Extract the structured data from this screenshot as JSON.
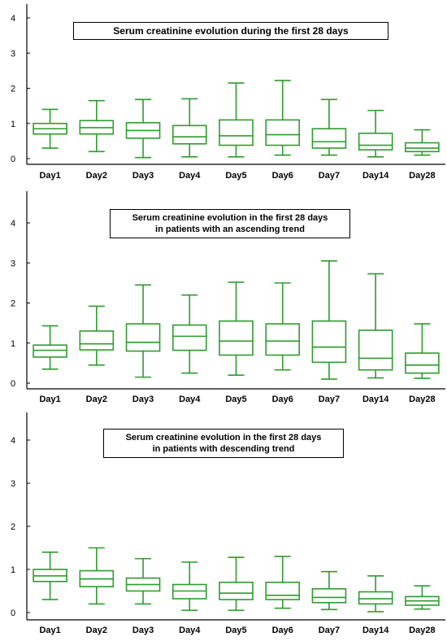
{
  "chart_data": [
    {
      "type": "box",
      "title": "Serum creatinine evolution during the first 28 days",
      "subtitle": "",
      "xlabel": "",
      "ylabel": "",
      "ylim": [
        0,
        4.3
      ],
      "yticks": [
        0,
        1,
        2,
        3,
        4
      ],
      "color": "#2e9b2e",
      "categories": [
        "Day1",
        "Day2",
        "Day3",
        "Day4",
        "Day5",
        "Day6",
        "Day7",
        "Day14",
        "Day28"
      ],
      "series": [
        {
          "values": [
            {
              "min": 0.3,
              "q1": 0.7,
              "median": 0.85,
              "q3": 1.0,
              "max": 1.4
            },
            {
              "min": 0.2,
              "q1": 0.7,
              "median": 0.88,
              "q3": 1.08,
              "max": 1.65
            },
            {
              "min": 0.03,
              "q1": 0.58,
              "median": 0.8,
              "q3": 1.02,
              "max": 1.68
            },
            {
              "min": 0.05,
              "q1": 0.42,
              "median": 0.62,
              "q3": 0.94,
              "max": 1.7
            },
            {
              "min": 0.05,
              "q1": 0.38,
              "median": 0.65,
              "q3": 1.1,
              "max": 2.15
            },
            {
              "min": 0.1,
              "q1": 0.38,
              "median": 0.68,
              "q3": 1.1,
              "max": 2.22
            },
            {
              "min": 0.1,
              "q1": 0.3,
              "median": 0.48,
              "q3": 0.85,
              "max": 1.68
            },
            {
              "min": 0.05,
              "q1": 0.25,
              "median": 0.38,
              "q3": 0.72,
              "max": 1.37
            },
            {
              "min": 0.1,
              "q1": 0.2,
              "median": 0.3,
              "q3": 0.45,
              "max": 0.82
            }
          ]
        }
      ]
    },
    {
      "type": "box",
      "title": "Serum creatinine evolution in the first 28 days",
      "subtitle": "in patients with an ascending trend",
      "xlabel": "",
      "ylabel": "",
      "ylim": [
        0,
        4.3
      ],
      "yticks": [
        0,
        1,
        2,
        3,
        4
      ],
      "color": "#2e9b2e",
      "categories": [
        "Day1",
        "Day2",
        "Day3",
        "Day4",
        "Day5",
        "Day6",
        "Day7",
        "Day14",
        "Day28"
      ],
      "series": [
        {
          "values": [
            {
              "min": 0.35,
              "q1": 0.65,
              "median": 0.82,
              "q3": 0.95,
              "max": 1.43
            },
            {
              "min": 0.45,
              "q1": 0.83,
              "median": 0.98,
              "q3": 1.3,
              "max": 1.92
            },
            {
              "min": 0.15,
              "q1": 0.8,
              "median": 1.02,
              "q3": 1.48,
              "max": 2.45
            },
            {
              "min": 0.25,
              "q1": 0.82,
              "median": 1.17,
              "q3": 1.45,
              "max": 2.2
            },
            {
              "min": 0.2,
              "q1": 0.7,
              "median": 1.05,
              "q3": 1.55,
              "max": 2.52
            },
            {
              "min": 0.33,
              "q1": 0.7,
              "median": 1.05,
              "q3": 1.48,
              "max": 2.5
            },
            {
              "min": 0.1,
              "q1": 0.52,
              "median": 0.9,
              "q3": 1.55,
              "max": 3.05
            },
            {
              "min": 0.13,
              "q1": 0.33,
              "median": 0.62,
              "q3": 1.32,
              "max": 2.73
            },
            {
              "min": 0.12,
              "q1": 0.25,
              "median": 0.45,
              "q3": 0.75,
              "max": 1.48
            }
          ]
        }
      ]
    },
    {
      "type": "box",
      "title": "Serum creatinine evolution in the first 28 days",
      "subtitle": "in patients with descending trend",
      "xlabel": "",
      "ylabel": "",
      "ylim": [
        0,
        4.3
      ],
      "yticks": [
        0,
        1,
        2,
        3,
        4
      ],
      "color": "#2e9b2e",
      "categories": [
        "Day1",
        "Day2",
        "Day3",
        "Day4",
        "Day5",
        "Day6",
        "Day7",
        "Day14",
        "Day28"
      ],
      "series": [
        {
          "values": [
            {
              "min": 0.3,
              "q1": 0.72,
              "median": 0.85,
              "q3": 1.0,
              "max": 1.4
            },
            {
              "min": 0.2,
              "q1": 0.6,
              "median": 0.78,
              "q3": 0.97,
              "max": 1.5
            },
            {
              "min": 0.2,
              "q1": 0.5,
              "median": 0.65,
              "q3": 0.8,
              "max": 1.25
            },
            {
              "min": 0.05,
              "q1": 0.32,
              "median": 0.5,
              "q3": 0.65,
              "max": 1.17
            },
            {
              "min": 0.05,
              "q1": 0.3,
              "median": 0.45,
              "q3": 0.7,
              "max": 1.28
            },
            {
              "min": 0.1,
              "q1": 0.3,
              "median": 0.4,
              "q3": 0.7,
              "max": 1.3
            },
            {
              "min": 0.07,
              "q1": 0.23,
              "median": 0.35,
              "q3": 0.55,
              "max": 0.95
            },
            {
              "min": 0.02,
              "q1": 0.2,
              "median": 0.32,
              "q3": 0.48,
              "max": 0.85
            },
            {
              "min": 0.08,
              "q1": 0.17,
              "median": 0.27,
              "q3": 0.37,
              "max": 0.62
            }
          ]
        }
      ]
    }
  ]
}
